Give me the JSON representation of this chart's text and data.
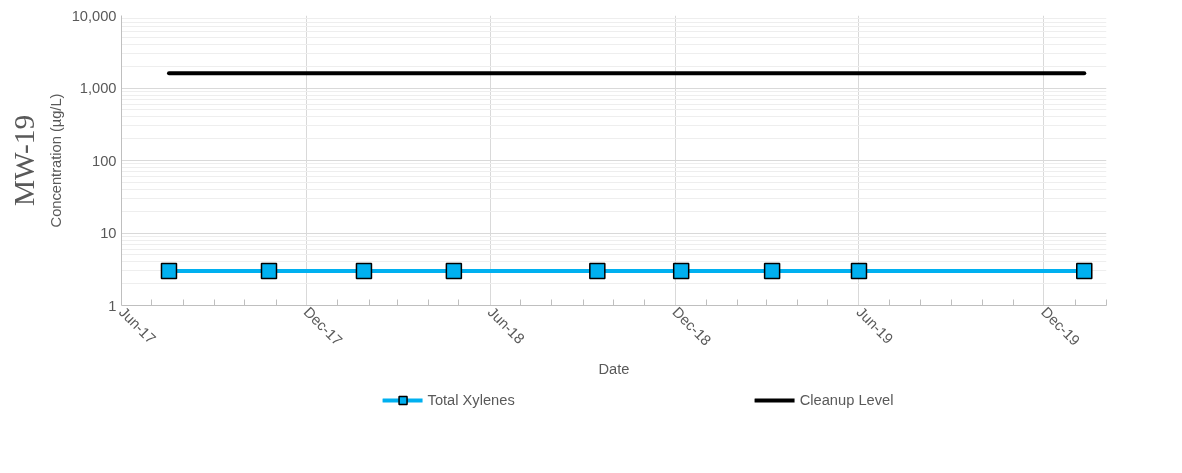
{
  "chart_data": {
    "type": "line",
    "title": "MW-19",
    "xlabel": "Date",
    "ylabel": "Concentration (µg/L)",
    "x": [
      "2017-07-18",
      "2017-10-25",
      "2018-01-27",
      "2018-04-26",
      "2018-09-15",
      "2018-12-07",
      "2019-03-07",
      "2019-06-01",
      "2020-01-10"
    ],
    "series": [
      {
        "name": "Total Xylenes",
        "color": "#00b0f0",
        "values": [
          3,
          3,
          3,
          3,
          3,
          3,
          3,
          3,
          3
        ],
        "marker": "square"
      },
      {
        "name": "Cleanup Level",
        "color": "#000000",
        "type": "line",
        "x": [
          "2017-07-18",
          "2020-01-10"
        ],
        "values": [
          1600,
          1600
        ],
        "marker": "none"
      }
    ],
    "xlim": [
      "2017-06-01",
      "2020-02-01"
    ],
    "xticks": [
      {
        "value": "2017-06-01",
        "label": "Jun-17"
      },
      {
        "value": "2017-07-01",
        "label": null
      },
      {
        "value": "2017-08-01",
        "label": null
      },
      {
        "value": "2017-09-01",
        "label": null
      },
      {
        "value": "2017-10-01",
        "label": null
      },
      {
        "value": "2017-11-01",
        "label": null
      },
      {
        "value": "2017-12-01",
        "label": "Dec-17"
      },
      {
        "value": "2018-01-01",
        "label": null
      },
      {
        "value": "2018-02-01",
        "label": null
      },
      {
        "value": "2018-03-01",
        "label": null
      },
      {
        "value": "2018-04-01",
        "label": null
      },
      {
        "value": "2018-05-01",
        "label": null
      },
      {
        "value": "2018-06-01",
        "label": "Jun-18"
      },
      {
        "value": "2018-07-01",
        "label": null
      },
      {
        "value": "2018-08-01",
        "label": null
      },
      {
        "value": "2018-09-01",
        "label": null
      },
      {
        "value": "2018-10-01",
        "label": null
      },
      {
        "value": "2018-11-01",
        "label": null
      },
      {
        "value": "2018-12-01",
        "label": "Dec-18"
      },
      {
        "value": "2019-01-01",
        "label": null
      },
      {
        "value": "2019-02-01",
        "label": null
      },
      {
        "value": "2019-03-01",
        "label": null
      },
      {
        "value": "2019-04-01",
        "label": null
      },
      {
        "value": "2019-05-01",
        "label": null
      },
      {
        "value": "2019-06-01",
        "label": "Jun-19"
      },
      {
        "value": "2019-07-01",
        "label": null
      },
      {
        "value": "2019-08-01",
        "label": null
      },
      {
        "value": "2019-09-01",
        "label": null
      },
      {
        "value": "2019-10-01",
        "label": null
      },
      {
        "value": "2019-11-01",
        "label": null
      },
      {
        "value": "2019-12-01",
        "label": "Dec-19"
      },
      {
        "value": "2020-01-01",
        "label": null
      },
      {
        "value": "2020-02-01",
        "label": null
      }
    ],
    "ylim": [
      1,
      10000
    ],
    "yticks": [
      1,
      10,
      100,
      {
        "value": 1000,
        "label": "1,000"
      },
      {
        "value": 10000,
        "label": "10,000"
      }
    ],
    "log": "y",
    "grid": true,
    "legend": "bottom",
    "line_style": "solid"
  }
}
